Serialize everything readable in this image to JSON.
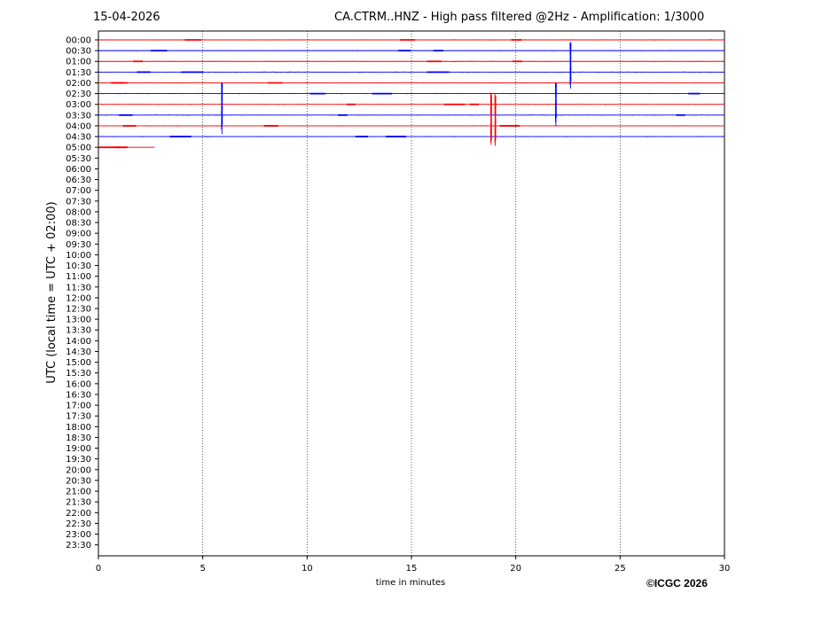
{
  "header": {
    "date": "15-04-2026",
    "title": "CA.CTRM..HNZ - High pass filtered @2Hz - Amplification: 1/3000"
  },
  "footer": {
    "copyright": "©ICGC 2026"
  },
  "colors": {
    "red": "#ff0000",
    "blue": "#0000ff",
    "grid": "#000000"
  },
  "chart_data": {
    "type": "line",
    "xlabel": "time in minutes",
    "ylabel": "UTC (local time = UTC + 02:00)",
    "xlim": [
      0,
      30
    ],
    "x_ticks": [
      "0",
      "5",
      "10",
      "15",
      "20",
      "25",
      "30"
    ],
    "x_tick_values": [
      0,
      5,
      10,
      15,
      20,
      25,
      30
    ],
    "grid": "vertical dotted at every 5 minutes",
    "row_labels": [
      "00:00",
      "00:30",
      "01:00",
      "01:30",
      "02:00",
      "02:30",
      "03:00",
      "03:30",
      "04:00",
      "04:30",
      "05:00",
      "05:30",
      "06:00",
      "06:30",
      "07:00",
      "07:30",
      "08:00",
      "08:30",
      "09:00",
      "09:30",
      "10:00",
      "10:30",
      "11:00",
      "11:30",
      "12:00",
      "12:30",
      "13:00",
      "13:30",
      "14:00",
      "14:30",
      "15:00",
      "15:30",
      "16:00",
      "16:30",
      "17:00",
      "17:30",
      "18:00",
      "18:30",
      "19:00",
      "19:30",
      "20:00",
      "20:30",
      "21:00",
      "21:30",
      "22:00",
      "22:30",
      "23:00",
      "23:30"
    ],
    "traces": [
      {
        "row": "00:00",
        "color": "red",
        "end_minute": 30
      },
      {
        "row": "00:30",
        "color": "blue",
        "end_minute": 30
      },
      {
        "row": "01:00",
        "color": "red",
        "end_minute": 30
      },
      {
        "row": "01:30",
        "color": "blue",
        "end_minute": 30
      },
      {
        "row": "02:00",
        "color": "red",
        "end_minute": 30
      },
      {
        "row": "02:30",
        "color": "blue",
        "end_minute": 30
      },
      {
        "row": "03:00",
        "color": "red",
        "end_minute": 30
      },
      {
        "row": "03:30",
        "color": "blue",
        "end_minute": 30
      },
      {
        "row": "04:00",
        "color": "red",
        "end_minute": 30
      },
      {
        "row": "04:30",
        "color": "blue",
        "end_minute": 30
      },
      {
        "row": "05:00",
        "color": "red",
        "end_minute": 2.7
      }
    ],
    "events": [
      {
        "row": "02:00",
        "color": "blue",
        "minute": 5.9,
        "up_rows": 0,
        "down_rows": 5
      },
      {
        "row": "03:30",
        "color": "red",
        "minute": 18.8,
        "up_rows": 2.1,
        "down_rows": 2.9
      },
      {
        "row": "03:30",
        "color": "red",
        "minute": 19.0,
        "up_rows": 2.0,
        "down_rows": 3.0
      },
      {
        "row": "02:00",
        "color": "blue",
        "minute": 21.9,
        "up_rows": 0,
        "down_rows": 4.2
      },
      {
        "row": "00:30",
        "color": "blue",
        "minute": 22.6,
        "up_rows": 0.8,
        "down_rows": 3.7
      }
    ]
  }
}
